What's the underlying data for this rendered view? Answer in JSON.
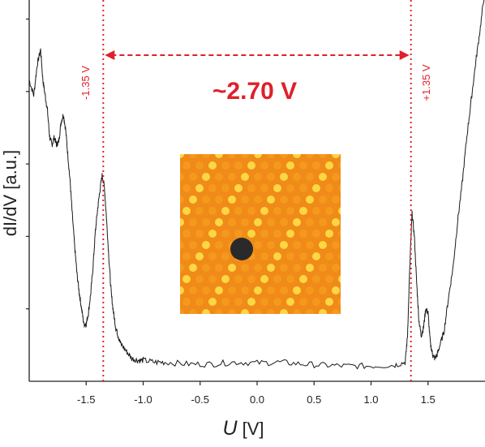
{
  "chart_data": {
    "type": "line",
    "title": "",
    "xlabel_symbol": "U",
    "xlabel_unit": " [V]",
    "ylabel": "dI/dV [a.u.]",
    "xlim": [
      -2.0,
      2.0
    ],
    "x_ticks": [
      "-1.5",
      "-1.0",
      "-0.5",
      "0.0",
      "0.5",
      "1.0",
      "1.5"
    ],
    "x_tick_values": [
      -1.5,
      -1.0,
      -0.5,
      0.0,
      0.5,
      1.0,
      1.5
    ],
    "ylim": [
      0,
      10
    ],
    "y_tick_values": [
      1.9,
      3.8,
      5.7,
      7.6,
      9.5
    ],
    "series": [
      {
        "x": [
          -2.0,
          -1.96,
          -1.93,
          -1.9,
          -1.88,
          -1.86,
          -1.84,
          -1.82,
          -1.8,
          -1.78,
          -1.76,
          -1.74,
          -1.72,
          -1.7,
          -1.68,
          -1.66,
          -1.64,
          -1.62,
          -1.6,
          -1.58,
          -1.56,
          -1.54,
          -1.52,
          -1.5,
          -1.48,
          -1.46,
          -1.44,
          -1.42,
          -1.4,
          -1.38,
          -1.36,
          -1.34,
          -1.32,
          -1.3,
          -1.28,
          -1.26,
          -1.24,
          -1.22,
          -1.2,
          -1.15,
          -1.1,
          -1.05,
          -1.0,
          -0.9,
          -0.8,
          -0.6,
          -0.4,
          -0.2,
          0.0,
          0.2,
          0.4,
          0.6,
          0.8,
          1.0,
          1.2,
          1.3,
          1.32,
          1.34,
          1.36,
          1.38,
          1.4,
          1.42,
          1.44,
          1.46,
          1.48,
          1.5,
          1.52,
          1.54,
          1.56,
          1.58,
          1.6,
          1.64,
          1.68,
          1.72,
          1.76,
          1.8,
          1.84,
          1.88,
          1.92,
          1.96,
          2.0
        ],
        "y": [
          7.9,
          7.5,
          8.3,
          8.7,
          7.9,
          7.5,
          7.1,
          6.4,
          6.2,
          6.4,
          6.2,
          6.3,
          6.8,
          7.0,
          6.6,
          5.9,
          5.2,
          4.3,
          3.5,
          2.8,
          2.3,
          1.9,
          1.5,
          1.5,
          1.8,
          2.3,
          3.0,
          3.9,
          4.5,
          5.0,
          5.4,
          5.1,
          4.2,
          3.2,
          2.3,
          1.8,
          1.4,
          1.2,
          1.0,
          0.8,
          0.6,
          0.55,
          0.55,
          0.5,
          0.5,
          0.45,
          0.45,
          0.5,
          0.48,
          0.5,
          0.45,
          0.42,
          0.4,
          0.4,
          0.42,
          0.5,
          1.2,
          3.0,
          4.4,
          3.8,
          2.6,
          1.6,
          1.2,
          1.4,
          1.9,
          1.8,
          1.0,
          0.7,
          0.6,
          0.7,
          0.9,
          1.3,
          2.2,
          3.0,
          4.2,
          5.2,
          6.4,
          7.4,
          8.4,
          9.3,
          10.3
        ]
      }
    ],
    "markers": {
      "left_x": -1.35,
      "right_x": 1.35,
      "left_label": "-1.35 V",
      "right_label": "+1.35 V",
      "gap_label": "~2.70 V",
      "color": "#e0202a"
    },
    "line_color": "#1a1a1a",
    "inset": {
      "type": "STM topography image",
      "colors": [
        "#e85a10",
        "#f7a020",
        "#fde44a"
      ],
      "marker_color": "#2a2a2a"
    }
  }
}
